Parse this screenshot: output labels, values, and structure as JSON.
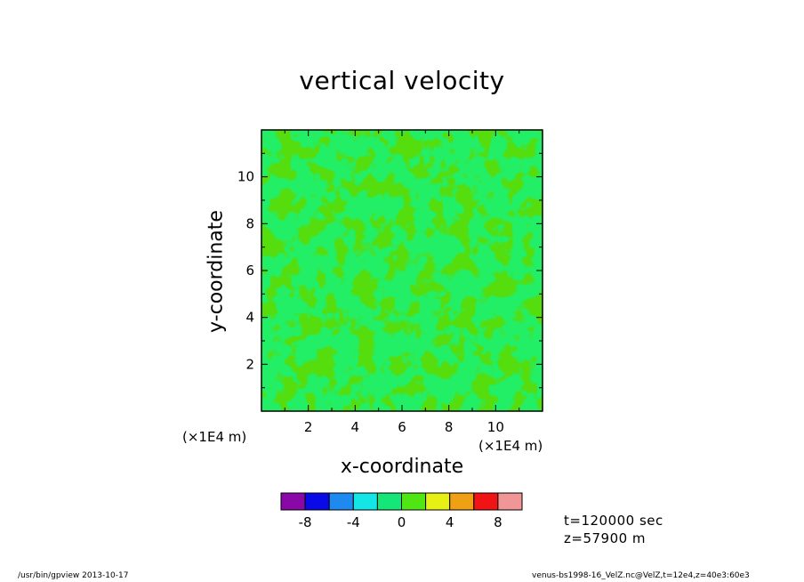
{
  "chart_data": {
    "type": "heatmap",
    "title": "vertical velocity",
    "xlabel": "x-coordinate",
    "ylabel": "y-coordinate",
    "x_multiplier": "(×1E4 m)",
    "y_multiplier": "(×1E4 m)",
    "xlim": [
      0,
      12
    ],
    "ylim": [
      0,
      12
    ],
    "x_ticks": [
      2,
      4,
      6,
      8,
      10
    ],
    "y_ticks": [
      2,
      4,
      6,
      8,
      10
    ],
    "colorbar": {
      "levels": [
        -10,
        -8,
        -6,
        -4,
        -2,
        0,
        2,
        4,
        6,
        8,
        10
      ],
      "tick_labels": [
        "-8",
        "-4",
        "0",
        "4",
        "8"
      ],
      "colors": [
        "#8a08a8",
        "#0a0ae6",
        "#1e8af0",
        "#14e6e6",
        "#14e678",
        "#50e614",
        "#e6f014",
        "#f0a014",
        "#f01414",
        "#f09696"
      ]
    },
    "field_colors": {
      "low": "#22ee66",
      "high": "#55dd11"
    }
  },
  "info": {
    "time": "t=120000 sec",
    "height": "z=57900 m"
  },
  "footer": {
    "left": "/usr/bin/gpview   2013-10-17",
    "right": "venus-bs1998-16_VelZ.nc@VelZ,t=12e4,z=40e3:60e3"
  }
}
